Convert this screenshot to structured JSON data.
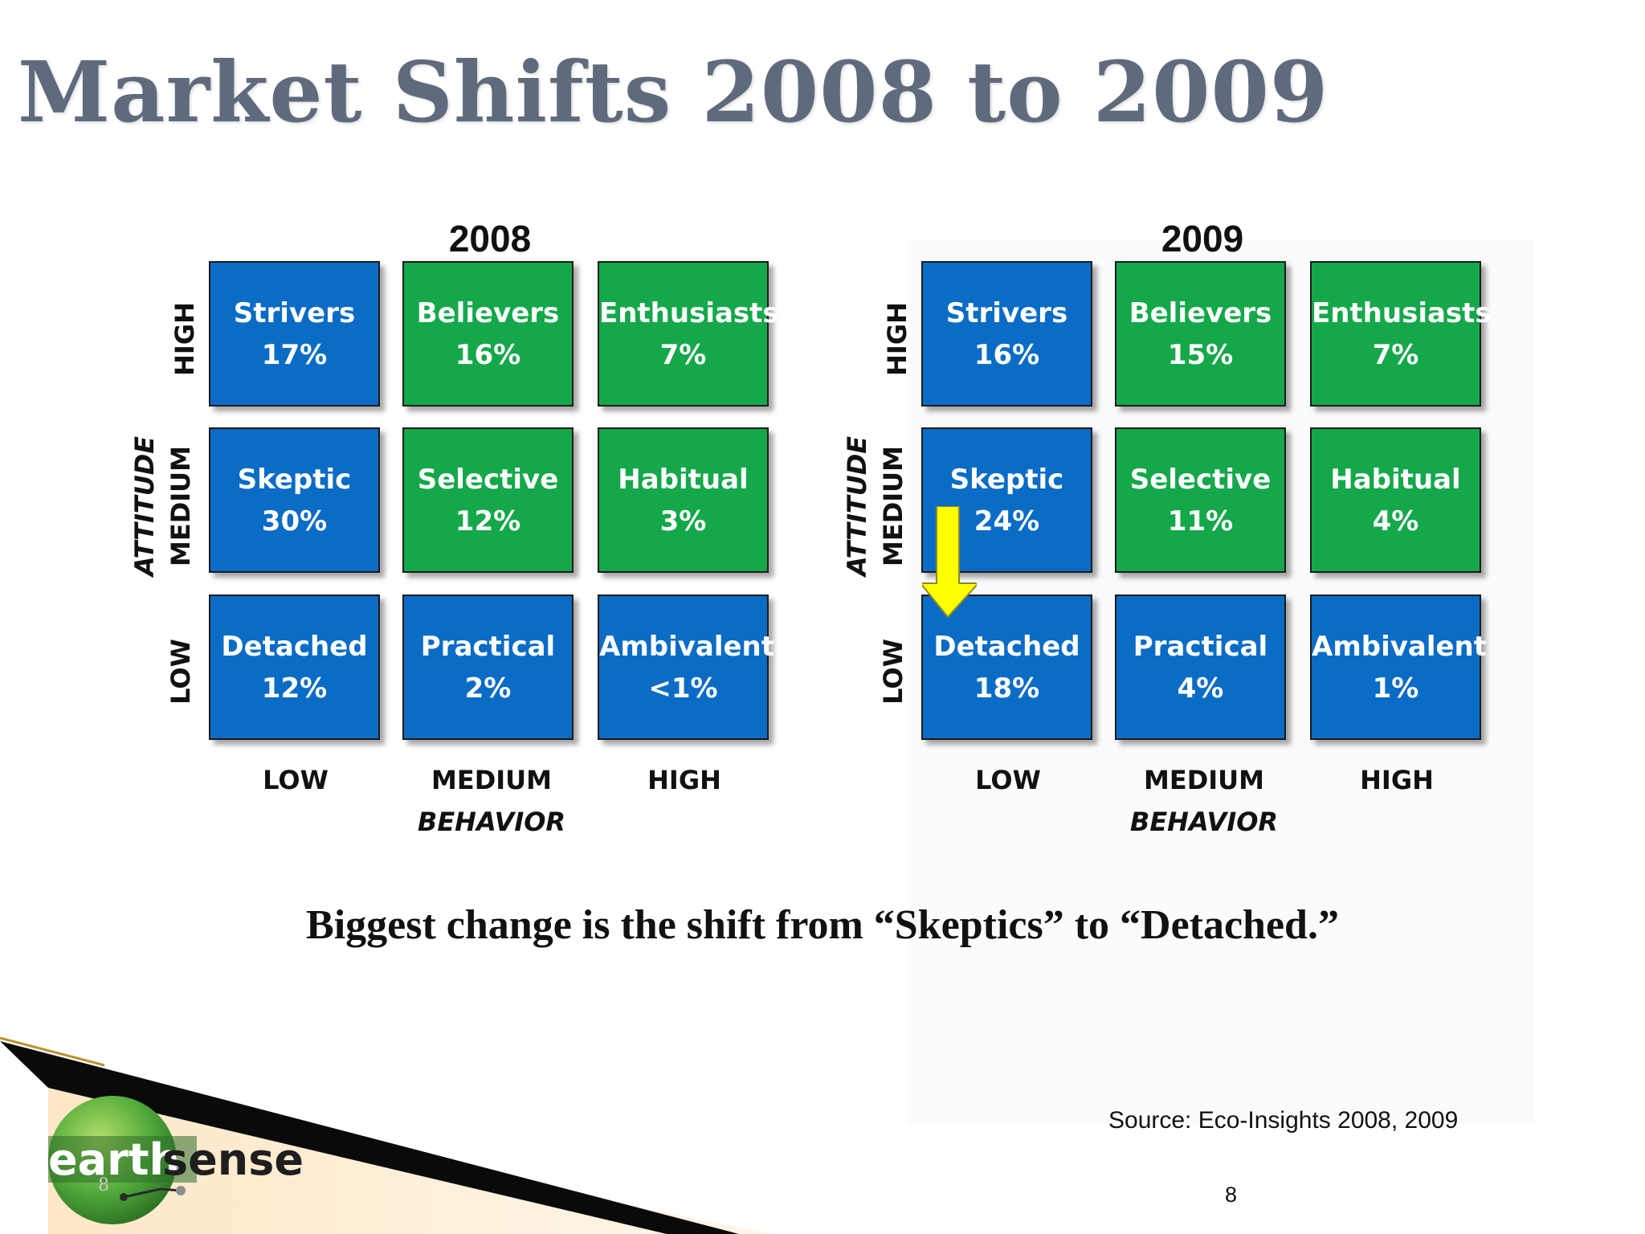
{
  "title": "Market Shifts 2008 to 2009",
  "panels": [
    {
      "year": "2008",
      "attitude_levels": [
        "HIGH",
        "MEDIUM",
        "LOW"
      ],
      "attitude_label": "ATTITUDE",
      "behavior_levels": [
        "LOW",
        "MEDIUM",
        "HIGH"
      ],
      "behavior_label": "BEHAVIOR",
      "rows": [
        [
          {
            "name": "Strivers",
            "pct": "17%",
            "color": "#0b6cc5"
          },
          {
            "name": "Believers",
            "pct": "16%",
            "color": "#14a84a"
          },
          {
            "name": "Enthusiasts",
            "pct": "7%",
            "color": "#14a84a"
          }
        ],
        [
          {
            "name": "Skeptic",
            "pct": "30%",
            "color": "#0b6cc5"
          },
          {
            "name": "Selective",
            "pct": "12%",
            "color": "#14a84a"
          },
          {
            "name": "Habitual",
            "pct": "3%",
            "color": "#14a84a"
          }
        ],
        [
          {
            "name": "Detached",
            "pct": "12%",
            "color": "#0b6cc5"
          },
          {
            "name": "Practical",
            "pct": "2%",
            "color": "#0b6cc5"
          },
          {
            "name": "Ambivalent",
            "pct": "<1%",
            "color": "#0b6cc5"
          }
        ]
      ]
    },
    {
      "year": "2009",
      "attitude_levels": [
        "HIGH",
        "MEDIUM",
        "LOW"
      ],
      "attitude_label": "ATTITUDE",
      "behavior_levels": [
        "LOW",
        "MEDIUM",
        "HIGH"
      ],
      "behavior_label": "BEHAVIOR",
      "rows": [
        [
          {
            "name": "Strivers",
            "pct": "16%",
            "color": "#0b6cc5"
          },
          {
            "name": "Believers",
            "pct": "15%",
            "color": "#14a84a"
          },
          {
            "name": "Enthusiasts",
            "pct": "7%",
            "color": "#14a84a"
          }
        ],
        [
          {
            "name": "Skeptic",
            "pct": "24%",
            "color": "#0b6cc5"
          },
          {
            "name": "Selective",
            "pct": "11%",
            "color": "#14a84a"
          },
          {
            "name": "Habitual",
            "pct": "4%",
            "color": "#14a84a"
          }
        ],
        [
          {
            "name": "Detached",
            "pct": "18%",
            "color": "#0b6cc5"
          },
          {
            "name": "Practical",
            "pct": "4%",
            "color": "#0b6cc5"
          },
          {
            "name": "Ambivalent",
            "pct": "1%",
            "color": "#0b6cc5"
          }
        ]
      ]
    }
  ],
  "arrow_color": "#ffff00",
  "caption": "Biggest change is the shift from “Skeptics” to “Detached.”",
  "source": "Source:  Eco-Insights 2008, 2009",
  "page_number": "8",
  "logo": {
    "text_a": "earth",
    "text_b": "sense",
    "slide_number": "8"
  }
}
